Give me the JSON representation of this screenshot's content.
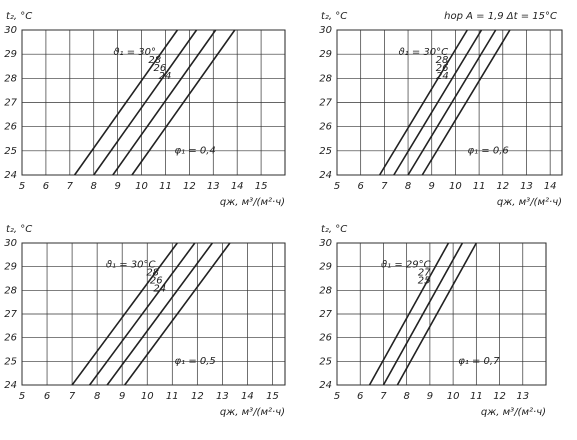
{
  "chart_data": [
    {
      "type": "line",
      "ylabel": "t₂, °C",
      "xlabel": "qж, м³/(м²·ч)",
      "annotation": "φ₁ = 0,4",
      "xlim": [
        5,
        16
      ],
      "ylim": [
        24,
        30
      ],
      "xticks": [
        5,
        6,
        7,
        8,
        9,
        10,
        11,
        12,
        13,
        14,
        15
      ],
      "yticks": [
        24,
        25,
        26,
        27,
        28,
        29,
        30
      ],
      "grid": true,
      "series": [
        {
          "name": "ϑ₁ = 30°",
          "color": "#222",
          "x": [
            7.2,
            11.5
          ],
          "values": [
            24,
            30
          ]
        },
        {
          "name": "28",
          "color": "#222",
          "x": [
            8.0,
            12.3
          ],
          "values": [
            24,
            30
          ]
        },
        {
          "name": "26",
          "color": "#222",
          "x": [
            8.8,
            13.1
          ],
          "values": [
            24,
            30
          ]
        },
        {
          "name": "24",
          "color": "#222",
          "x": [
            9.6,
            13.9
          ],
          "values": [
            24,
            30
          ]
        }
      ]
    },
    {
      "type": "line",
      "ylabel": "t₂, °C",
      "xlabel": "qж, м³/(м²·ч)",
      "annotation": "φ₁ = 0,6",
      "header": "hор A = 1,9    Δt = 15°C",
      "xlim": [
        5,
        14.5
      ],
      "ylim": [
        24,
        30
      ],
      "xticks": [
        5,
        6,
        7,
        8,
        9,
        10,
        11,
        12,
        13,
        14
      ],
      "yticks": [
        24,
        25,
        26,
        27,
        28,
        29,
        30
      ],
      "grid": true,
      "series": [
        {
          "name": "ϑ₁ = 30°C",
          "color": "#222",
          "x": [
            6.8,
            10.5
          ],
          "values": [
            24,
            30
          ]
        },
        {
          "name": "28",
          "color": "#222",
          "x": [
            7.4,
            11.1
          ],
          "values": [
            24,
            30
          ]
        },
        {
          "name": "26",
          "color": "#222",
          "x": [
            8.0,
            11.7
          ],
          "values": [
            24,
            30
          ]
        },
        {
          "name": "24",
          "color": "#222",
          "x": [
            8.6,
            12.3
          ],
          "values": [
            24,
            30
          ]
        }
      ]
    },
    {
      "type": "line",
      "ylabel": "t₂, °C",
      "xlabel": "qж, м³/(м²·ч)",
      "annotation": "φ₁ = 0,5",
      "xlim": [
        5,
        15.5
      ],
      "ylim": [
        24,
        30
      ],
      "xticks": [
        5,
        6,
        7,
        8,
        9,
        10,
        11,
        12,
        13,
        14,
        15
      ],
      "yticks": [
        24,
        25,
        26,
        27,
        28,
        29,
        30
      ],
      "grid": true,
      "series": [
        {
          "name": "ϑ₁ = 30°C",
          "color": "#222",
          "x": [
            7.0,
            11.2
          ],
          "values": [
            24,
            30
          ]
        },
        {
          "name": "28",
          "color": "#222",
          "x": [
            7.7,
            11.9
          ],
          "values": [
            24,
            30
          ]
        },
        {
          "name": "26",
          "color": "#222",
          "x": [
            8.4,
            12.6
          ],
          "values": [
            24,
            30
          ]
        },
        {
          "name": "24",
          "color": "#222",
          "x": [
            9.1,
            13.3
          ],
          "values": [
            24,
            30
          ]
        }
      ]
    },
    {
      "type": "line",
      "ylabel": "t₂, °C",
      "xlabel": "qж, м³/(м²·ч)",
      "annotation": "φ₁ = 0,7",
      "xlim": [
        5,
        14
      ],
      "ylim": [
        24,
        30
      ],
      "xticks": [
        5,
        6,
        7,
        8,
        9,
        10,
        11,
        12,
        13
      ],
      "yticks": [
        24,
        25,
        26,
        27,
        28,
        29,
        30
      ],
      "grid": true,
      "series": [
        {
          "name": "ϑ₁ = 29°C",
          "color": "#222",
          "x": [
            6.4,
            9.8
          ],
          "values": [
            24,
            30
          ]
        },
        {
          "name": "27",
          "color": "#222",
          "x": [
            7.0,
            10.4
          ],
          "values": [
            24,
            30
          ]
        },
        {
          "name": "25",
          "color": "#222",
          "x": [
            7.6,
            11.0
          ],
          "values": [
            24,
            30
          ]
        }
      ]
    }
  ]
}
